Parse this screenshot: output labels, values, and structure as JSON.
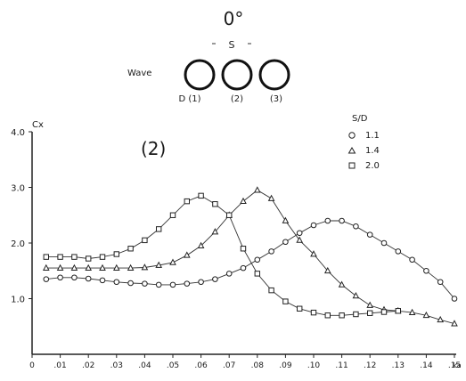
{
  "header": {
    "angle_label": "0°",
    "spacing_label": "S",
    "wave_label": "Wave",
    "cylinder_labels": [
      "D (1)",
      "(2)",
      "(3)"
    ]
  },
  "chart_data": {
    "type": "line",
    "panel_label": "(2)",
    "ylabel": "Cx",
    "xlabel": "ka",
    "xlim": [
      0,
      1.5
    ],
    "ylim": [
      0,
      4.0
    ],
    "y_ticks": [
      "4.0",
      "3.0",
      "2.0",
      "1.0"
    ],
    "x_ticks": [
      "0",
      ".01",
      ".02",
      ".03",
      ".04",
      ".05",
      ".06",
      ".07",
      ".08",
      ".09",
      ".10",
      ".11",
      ".12",
      ".13",
      ".14",
      ".15"
    ],
    "legend_title": "S/D",
    "series": [
      {
        "name": "1.1",
        "marker": "circle",
        "x": [
          0.05,
          0.1,
          0.15,
          0.2,
          0.25,
          0.3,
          0.35,
          0.4,
          0.45,
          0.5,
          0.55,
          0.6,
          0.65,
          0.7,
          0.75,
          0.8,
          0.85,
          0.9,
          0.95,
          1.0,
          1.05,
          1.1,
          1.15,
          1.2,
          1.25,
          1.3,
          1.35,
          1.4,
          1.45,
          1.5
        ],
        "values": [
          1.35,
          1.38,
          1.38,
          1.36,
          1.33,
          1.3,
          1.28,
          1.27,
          1.25,
          1.25,
          1.27,
          1.3,
          1.35,
          1.45,
          1.55,
          1.7,
          1.85,
          2.02,
          2.18,
          2.32,
          2.4,
          2.4,
          2.3,
          2.15,
          2.0,
          1.85,
          1.7,
          1.5,
          1.3,
          1.0
        ]
      },
      {
        "name": "1.4",
        "marker": "triangle",
        "x": [
          0.05,
          0.1,
          0.15,
          0.2,
          0.25,
          0.3,
          0.35,
          0.4,
          0.45,
          0.5,
          0.55,
          0.6,
          0.65,
          0.7,
          0.75,
          0.8,
          0.85,
          0.9,
          0.95,
          1.0,
          1.05,
          1.1,
          1.15,
          1.2,
          1.25,
          1.3,
          1.35,
          1.4,
          1.45,
          1.5
        ],
        "values": [
          1.55,
          1.55,
          1.55,
          1.55,
          1.55,
          1.55,
          1.55,
          1.56,
          1.6,
          1.65,
          1.78,
          1.95,
          2.2,
          2.5,
          2.75,
          2.95,
          2.8,
          2.4,
          2.05,
          1.8,
          1.5,
          1.25,
          1.05,
          0.88,
          0.8,
          0.78,
          0.75,
          0.7,
          0.62,
          0.55
        ]
      },
      {
        "name": "2.0",
        "marker": "square",
        "x": [
          0.05,
          0.1,
          0.15,
          0.2,
          0.25,
          0.3,
          0.35,
          0.4,
          0.45,
          0.5,
          0.55,
          0.6,
          0.65,
          0.7,
          0.75,
          0.8,
          0.85,
          0.9,
          0.95,
          1.0,
          1.05,
          1.1,
          1.15,
          1.2,
          1.25,
          1.3
        ],
        "values": [
          1.75,
          1.75,
          1.75,
          1.72,
          1.75,
          1.8,
          1.9,
          2.05,
          2.25,
          2.5,
          2.75,
          2.85,
          2.7,
          2.5,
          1.9,
          1.45,
          1.15,
          0.95,
          0.82,
          0.75,
          0.7,
          0.7,
          0.72,
          0.74,
          0.76,
          0.78
        ]
      }
    ]
  }
}
